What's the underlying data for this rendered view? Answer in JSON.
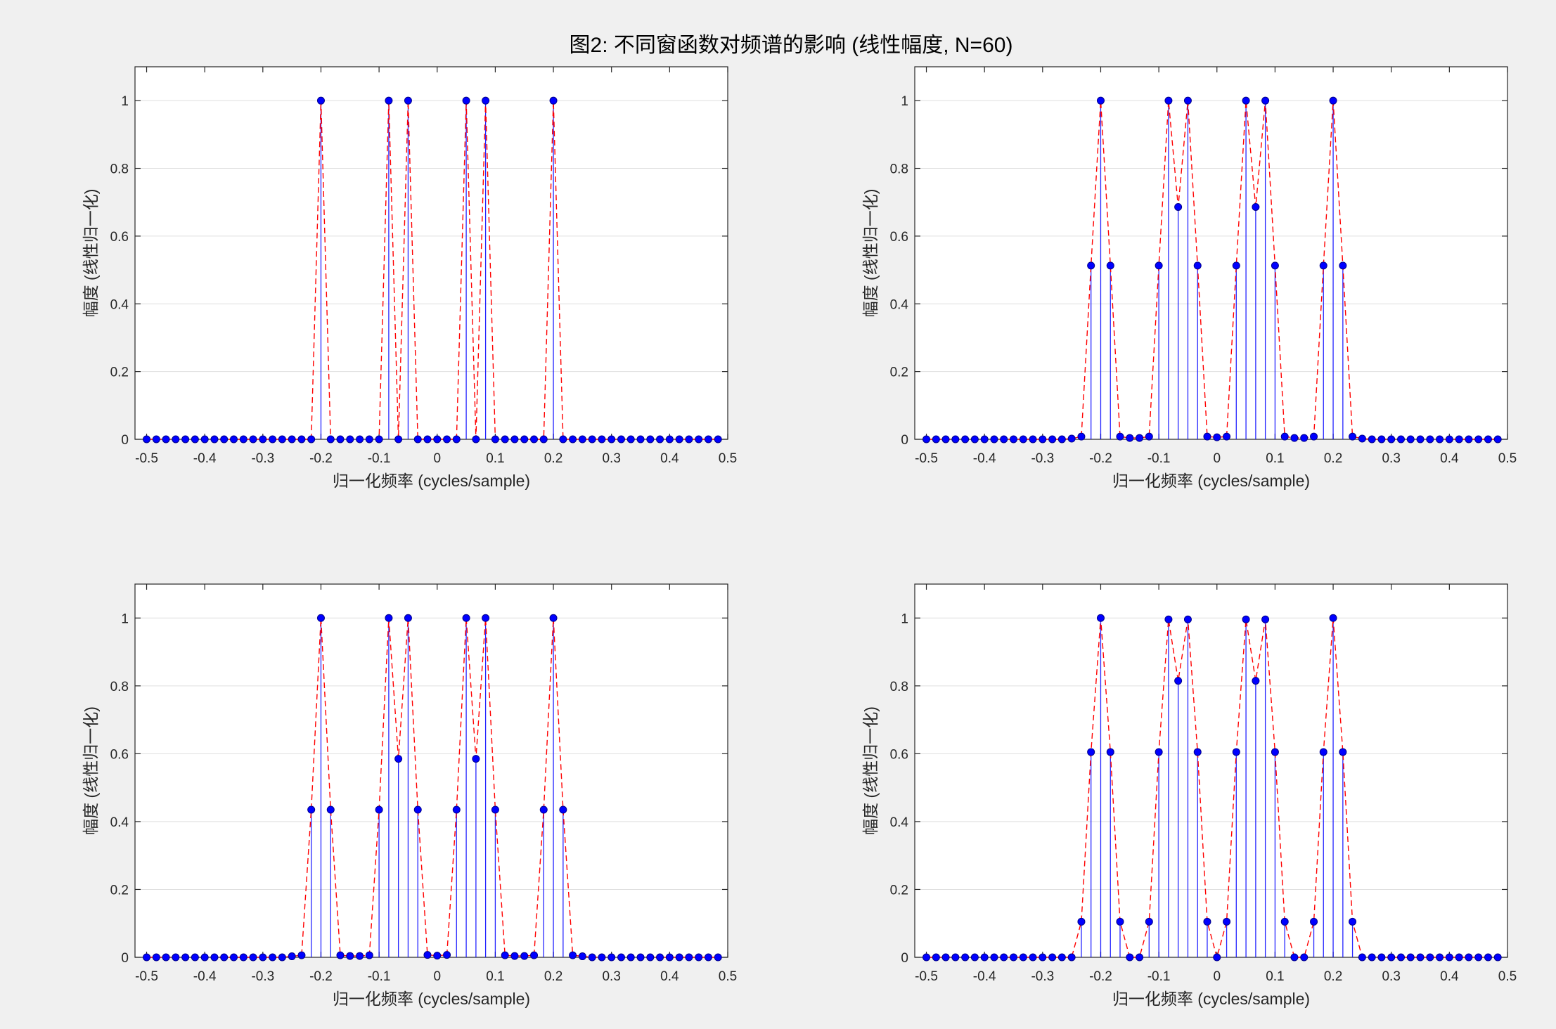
{
  "figure": {
    "title": "图2: 不同窗函数对频谱的影响 (线性幅度, N=60)",
    "background": "#f0f0f0"
  },
  "chart_data": [
    {
      "type": "line",
      "style": "stem",
      "xlabel": "归一化频率 (cycles/sample)",
      "ylabel": "幅度 (线性归一化)",
      "xlim": [
        -0.52,
        0.5
      ],
      "ylim": [
        0,
        1.1
      ],
      "xticks": [
        -0.5,
        -0.4,
        -0.3,
        -0.2,
        -0.1,
        0,
        0.1,
        0.2,
        0.3,
        0.4,
        0.5
      ],
      "xtick_labels": [
        "-0.5",
        "-0.4",
        "-0.3",
        "-0.2",
        "-0.1",
        "0",
        "0.1",
        "0.2",
        "0.3",
        "0.4",
        "0.5"
      ],
      "yticks": [
        0,
        0.2,
        0.4,
        0.6,
        0.8,
        1
      ],
      "ytick_labels": [
        "0",
        "0.2",
        "0.4",
        "0.6",
        "0.8",
        "1"
      ],
      "grid": "y",
      "stem_color": "#0000ff",
      "line_color": "#ff0000",
      "x": [
        -0.5,
        -0.4833,
        -0.4667,
        -0.45,
        -0.4333,
        -0.4167,
        -0.4,
        -0.3833,
        -0.3667,
        -0.35,
        -0.3333,
        -0.3167,
        -0.3,
        -0.2833,
        -0.2667,
        -0.25,
        -0.2333,
        -0.2167,
        -0.2,
        -0.1833,
        -0.1667,
        -0.15,
        -0.1333,
        -0.1167,
        -0.1,
        -0.0833,
        -0.0667,
        -0.05,
        -0.0333,
        -0.0167,
        0,
        0.0167,
        0.0333,
        0.05,
        0.0667,
        0.0833,
        0.1,
        0.1167,
        0.1333,
        0.15,
        0.1667,
        0.1833,
        0.2,
        0.2167,
        0.2333,
        0.25,
        0.2667,
        0.2833,
        0.3,
        0.3167,
        0.3333,
        0.35,
        0.3667,
        0.3833,
        0.4,
        0.4167,
        0.4333,
        0.45,
        0.4667,
        0.4833
      ],
      "y": [
        0,
        0,
        0,
        0,
        0,
        0,
        0,
        0,
        0,
        0,
        0,
        0,
        0,
        0,
        0,
        0,
        0,
        0,
        1,
        0,
        0,
        0,
        0,
        0,
        0,
        1,
        0,
        1,
        0,
        0,
        0,
        0,
        0,
        1,
        0,
        1,
        0,
        0,
        0,
        0,
        0,
        0,
        1,
        0,
        0,
        0,
        0,
        0,
        0,
        0,
        0,
        0,
        0,
        0,
        0,
        0,
        0,
        0,
        0,
        0
      ]
    },
    {
      "type": "line",
      "style": "stem",
      "xlabel": "归一化频率 (cycles/sample)",
      "ylabel": "幅度 (线性归一化)",
      "xlim": [
        -0.52,
        0.5
      ],
      "ylim": [
        0,
        1.1
      ],
      "xticks": [
        -0.5,
        -0.4,
        -0.3,
        -0.2,
        -0.1,
        0,
        0.1,
        0.2,
        0.3,
        0.4,
        0.5
      ],
      "xtick_labels": [
        "-0.5",
        "-0.4",
        "-0.3",
        "-0.2",
        "-0.1",
        "0",
        "0.1",
        "0.2",
        "0.3",
        "0.4",
        "0.5"
      ],
      "yticks": [
        0,
        0.2,
        0.4,
        0.6,
        0.8,
        1
      ],
      "ytick_labels": [
        "0",
        "0.2",
        "0.4",
        "0.6",
        "0.8",
        "1"
      ],
      "grid": "y",
      "stem_color": "#0000ff",
      "line_color": "#ff0000",
      "x": [
        -0.5,
        -0.4833,
        -0.4667,
        -0.45,
        -0.4333,
        -0.4167,
        -0.4,
        -0.3833,
        -0.3667,
        -0.35,
        -0.3333,
        -0.3167,
        -0.3,
        -0.2833,
        -0.2667,
        -0.25,
        -0.2333,
        -0.2167,
        -0.2,
        -0.1833,
        -0.1667,
        -0.15,
        -0.1333,
        -0.1167,
        -0.1,
        -0.0833,
        -0.0667,
        -0.05,
        -0.0333,
        -0.0167,
        0,
        0.0167,
        0.0333,
        0.05,
        0.0667,
        0.0833,
        0.1,
        0.1167,
        0.1333,
        0.15,
        0.1667,
        0.1833,
        0.2,
        0.2167,
        0.2333,
        0.25,
        0.2667,
        0.2833,
        0.3,
        0.3167,
        0.3333,
        0.35,
        0.3667,
        0.3833,
        0.4,
        0.4167,
        0.4333,
        0.45,
        0.4667,
        0.4833
      ],
      "y": [
        0,
        0,
        0,
        0,
        0,
        0,
        0,
        0,
        0,
        0,
        0,
        0,
        0,
        0,
        0,
        0.002,
        0.008,
        0.513,
        1,
        0.513,
        0.008,
        0.004,
        0.004,
        0.008,
        0.513,
        1,
        0.686,
        1,
        0.513,
        0.008,
        0.006,
        0.008,
        0.513,
        1,
        0.686,
        1,
        0.513,
        0.008,
        0.004,
        0.004,
        0.008,
        0.513,
        1,
        0.513,
        0.008,
        0.002,
        0,
        0,
        0,
        0,
        0,
        0,
        0,
        0,
        0,
        0,
        0,
        0,
        0,
        0
      ]
    },
    {
      "type": "line",
      "style": "stem",
      "xlabel": "归一化频率 (cycles/sample)",
      "ylabel": "幅度 (线性归一化)",
      "xlim": [
        -0.52,
        0.5
      ],
      "ylim": [
        0,
        1.1
      ],
      "xticks": [
        -0.5,
        -0.4,
        -0.3,
        -0.2,
        -0.1,
        0,
        0.1,
        0.2,
        0.3,
        0.4,
        0.5
      ],
      "xtick_labels": [
        "-0.5",
        "-0.4",
        "-0.3",
        "-0.2",
        "-0.1",
        "0",
        "0.1",
        "0.2",
        "0.3",
        "0.4",
        "0.5"
      ],
      "yticks": [
        0,
        0.2,
        0.4,
        0.6,
        0.8,
        1
      ],
      "ytick_labels": [
        "0",
        "0.2",
        "0.4",
        "0.6",
        "0.8",
        "1"
      ],
      "grid": "y",
      "stem_color": "#0000ff",
      "line_color": "#ff0000",
      "x": [
        -0.5,
        -0.4833,
        -0.4667,
        -0.45,
        -0.4333,
        -0.4167,
        -0.4,
        -0.3833,
        -0.3667,
        -0.35,
        -0.3333,
        -0.3167,
        -0.3,
        -0.2833,
        -0.2667,
        -0.25,
        -0.2333,
        -0.2167,
        -0.2,
        -0.1833,
        -0.1667,
        -0.15,
        -0.1333,
        -0.1167,
        -0.1,
        -0.0833,
        -0.0667,
        -0.05,
        -0.0333,
        -0.0167,
        0,
        0.0167,
        0.0333,
        0.05,
        0.0667,
        0.0833,
        0.1,
        0.1167,
        0.1333,
        0.15,
        0.1667,
        0.1833,
        0.2,
        0.2167,
        0.2333,
        0.25,
        0.2667,
        0.2833,
        0.3,
        0.3167,
        0.3333,
        0.35,
        0.3667,
        0.3833,
        0.4,
        0.4167,
        0.4333,
        0.45,
        0.4667,
        0.4833
      ],
      "y": [
        0,
        0,
        0,
        0,
        0,
        0,
        0,
        0,
        0,
        0,
        0,
        0,
        0,
        0,
        0,
        0.003,
        0.006,
        0.435,
        1,
        0.435,
        0.006,
        0.004,
        0.004,
        0.006,
        0.435,
        1,
        0.585,
        1,
        0.435,
        0.007,
        0.005,
        0.007,
        0.435,
        1,
        0.585,
        1,
        0.435,
        0.006,
        0.004,
        0.004,
        0.006,
        0.435,
        1,
        0.435,
        0.006,
        0.003,
        0,
        0,
        0,
        0,
        0,
        0,
        0,
        0,
        0,
        0,
        0,
        0,
        0,
        0
      ]
    },
    {
      "type": "line",
      "style": "stem",
      "xlabel": "归一化频率 (cycles/sample)",
      "ylabel": "幅度 (线性归一化)",
      "xlim": [
        -0.52,
        0.5
      ],
      "ylim": [
        0,
        1.1
      ],
      "xticks": [
        -0.5,
        -0.4,
        -0.3,
        -0.2,
        -0.1,
        0,
        0.1,
        0.2,
        0.3,
        0.4,
        0.5
      ],
      "xtick_labels": [
        "-0.5",
        "-0.4",
        "-0.3",
        "-0.2",
        "-0.1",
        "0",
        "0.1",
        "0.2",
        "0.3",
        "0.4",
        "0.5"
      ],
      "yticks": [
        0,
        0.2,
        0.4,
        0.6,
        0.8,
        1
      ],
      "ytick_labels": [
        "0",
        "0.2",
        "0.4",
        "0.6",
        "0.8",
        "1"
      ],
      "grid": "y",
      "stem_color": "#0000ff",
      "line_color": "#ff0000",
      "x": [
        -0.5,
        -0.4833,
        -0.4667,
        -0.45,
        -0.4333,
        -0.4167,
        -0.4,
        -0.3833,
        -0.3667,
        -0.35,
        -0.3333,
        -0.3167,
        -0.3,
        -0.2833,
        -0.2667,
        -0.25,
        -0.2333,
        -0.2167,
        -0.2,
        -0.1833,
        -0.1667,
        -0.15,
        -0.1333,
        -0.1167,
        -0.1,
        -0.0833,
        -0.0667,
        -0.05,
        -0.0333,
        -0.0167,
        0,
        0.0167,
        0.0333,
        0.05,
        0.0667,
        0.0833,
        0.1,
        0.1167,
        0.1333,
        0.15,
        0.1667,
        0.1833,
        0.2,
        0.2167,
        0.2333,
        0.25,
        0.2667,
        0.2833,
        0.3,
        0.3167,
        0.3333,
        0.35,
        0.3667,
        0.3833,
        0.4,
        0.4167,
        0.4333,
        0.45,
        0.4667,
        0.4833
      ],
      "y": [
        0,
        0,
        0,
        0,
        0,
        0,
        0,
        0,
        0,
        0,
        0,
        0,
        0,
        0,
        0,
        0,
        0.105,
        0.605,
        1,
        0.605,
        0.105,
        0,
        0,
        0.105,
        0.605,
        0.996,
        0.815,
        0.996,
        0.605,
        0.105,
        0,
        0.105,
        0.605,
        0.996,
        0.815,
        0.996,
        0.605,
        0.105,
        0,
        0,
        0.105,
        0.605,
        1,
        0.605,
        0.105,
        0,
        0,
        0,
        0,
        0,
        0,
        0,
        0,
        0,
        0,
        0,
        0,
        0,
        0,
        0
      ]
    }
  ]
}
